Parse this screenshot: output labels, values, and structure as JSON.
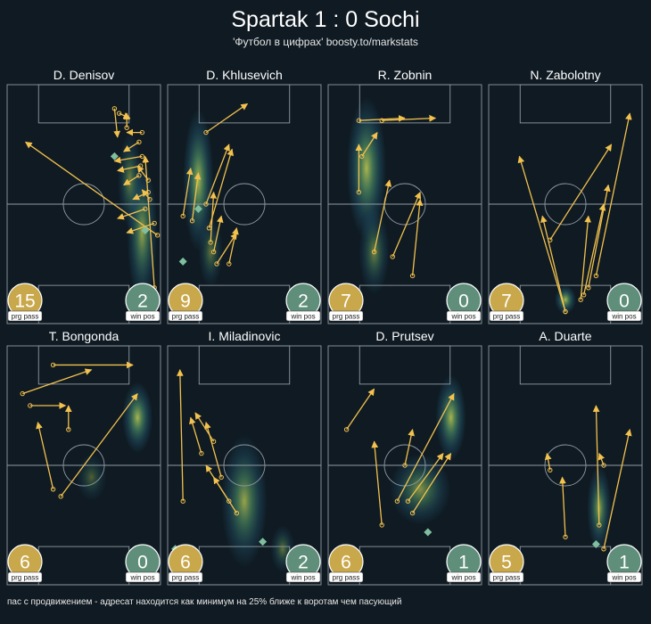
{
  "header": {
    "title": "Spartak 1 : 0 Sochi",
    "subtitle": "'Футбол в цифрах' boosty.to/markstats"
  },
  "footnote": "пас с продвижением - адресат находится как минимум на 25% ближе к воротам чем пасующий",
  "colors": {
    "background": "#0f1a22",
    "pitch_lines": "#8f9aa3",
    "pass_arrow": "#f2c14e",
    "prg_badge": "#c9a84c",
    "win_badge": "#5f8f7a",
    "win_marker": "#7fbf9f",
    "heat_low": "#2a6e8a",
    "heat_high": "#d9e55a"
  },
  "chart_data": [
    {
      "type": "pass_map",
      "player": "D. Denisov",
      "prg_pass": 15,
      "win_pos": 2,
      "prg_label": "prg pass",
      "win_label": "win pos",
      "heat": [
        [
          0.88,
          0.62,
          0.1,
          0.3,
          0.8
        ],
        [
          0.8,
          0.4,
          0.08,
          0.2,
          0.6
        ]
      ],
      "passes": [
        [
          0.7,
          0.1,
          0.72,
          0.22
        ],
        [
          0.73,
          0.12,
          0.8,
          0.14
        ],
        [
          0.78,
          0.18,
          0.78,
          0.12
        ],
        [
          0.88,
          0.2,
          0.78,
          0.2
        ],
        [
          0.86,
          0.24,
          0.76,
          0.28
        ],
        [
          0.88,
          0.3,
          0.7,
          0.32
        ],
        [
          0.87,
          0.34,
          0.72,
          0.36
        ],
        [
          0.86,
          0.38,
          0.76,
          0.42
        ],
        [
          0.92,
          0.45,
          0.82,
          0.48
        ],
        [
          0.9,
          0.52,
          0.72,
          0.56
        ],
        [
          0.96,
          0.58,
          0.78,
          0.62
        ],
        [
          0.98,
          0.63,
          0.12,
          0.24
        ],
        [
          0.96,
          0.85,
          0.9,
          0.3
        ],
        [
          0.92,
          0.4,
          0.85,
          0.34
        ],
        [
          0.93,
          0.48,
          0.88,
          0.44
        ]
      ],
      "wins": [
        [
          0.7,
          0.3
        ],
        [
          0.9,
          0.61
        ]
      ]
    },
    {
      "type": "pass_map",
      "player": "D. Khlusevich",
      "prg_pass": 9,
      "win_pos": 2,
      "prg_label": "prg pass",
      "win_label": "win pos",
      "heat": [
        [
          0.2,
          0.4,
          0.1,
          0.3,
          0.9
        ],
        [
          0.28,
          0.7,
          0.08,
          0.15,
          0.5
        ]
      ],
      "passes": [
        [
          0.25,
          0.2,
          0.52,
          0.08
        ],
        [
          0.1,
          0.55,
          0.15,
          0.35
        ],
        [
          0.16,
          0.57,
          0.2,
          0.37
        ],
        [
          0.25,
          0.5,
          0.4,
          0.25
        ],
        [
          0.27,
          0.6,
          0.42,
          0.27
        ],
        [
          0.28,
          0.66,
          0.3,
          0.45
        ],
        [
          0.3,
          0.7,
          0.35,
          0.55
        ],
        [
          0.32,
          0.75,
          0.45,
          0.62
        ],
        [
          0.4,
          0.75,
          0.45,
          0.6
        ]
      ],
      "wins": [
        [
          0.1,
          0.74
        ],
        [
          0.2,
          0.52
        ]
      ]
    },
    {
      "type": "pass_map",
      "player": "R. Zobnin",
      "prg_pass": 7,
      "win_pos": 0,
      "prg_label": "prg pass",
      "win_label": "win pos",
      "heat": [
        [
          0.25,
          0.35,
          0.13,
          0.3,
          0.9
        ],
        [
          0.3,
          0.7,
          0.1,
          0.18,
          0.6
        ]
      ],
      "passes": [
        [
          0.2,
          0.15,
          0.5,
          0.14
        ],
        [
          0.35,
          0.15,
          0.7,
          0.14
        ],
        [
          0.22,
          0.3,
          0.32,
          0.2
        ],
        [
          0.2,
          0.45,
          0.2,
          0.25
        ],
        [
          0.3,
          0.7,
          0.4,
          0.4
        ],
        [
          0.42,
          0.72,
          0.6,
          0.45
        ],
        [
          0.55,
          0.8,
          0.6,
          0.48
        ]
      ],
      "wins": []
    },
    {
      "type": "pass_map",
      "player": "N. Zabolotny",
      "prg_pass": 7,
      "win_pos": 0,
      "prg_label": "prg pass",
      "win_label": "win pos",
      "heat": [
        [
          0.5,
          0.9,
          0.07,
          0.06,
          0.9
        ]
      ],
      "passes": [
        [
          0.5,
          0.95,
          0.35,
          0.55
        ],
        [
          0.5,
          0.95,
          0.2,
          0.3
        ],
        [
          0.6,
          0.9,
          0.65,
          0.55
        ],
        [
          0.62,
          0.88,
          0.75,
          0.5
        ],
        [
          0.65,
          0.85,
          0.78,
          0.42
        ],
        [
          0.7,
          0.8,
          0.92,
          0.12
        ],
        [
          0.4,
          0.65,
          0.8,
          0.25
        ]
      ],
      "wins": []
    },
    {
      "type": "pass_map",
      "player": "T. Bongonda",
      "prg_pass": 6,
      "win_pos": 0,
      "prg_label": "prg pass",
      "win_label": "win pos",
      "heat": [
        [
          0.85,
          0.3,
          0.1,
          0.15,
          0.9
        ],
        [
          0.55,
          0.55,
          0.1,
          0.1,
          0.4
        ]
      ],
      "passes": [
        [
          0.3,
          0.08,
          0.82,
          0.08
        ],
        [
          0.1,
          0.2,
          0.55,
          0.1
        ],
        [
          0.15,
          0.25,
          0.38,
          0.25
        ],
        [
          0.4,
          0.35,
          0.4,
          0.25
        ],
        [
          0.3,
          0.6,
          0.2,
          0.32
        ],
        [
          0.35,
          0.63,
          0.85,
          0.2
        ]
      ],
      "wins": []
    },
    {
      "type": "pass_map",
      "player": "I. Miladinovic",
      "prg_pass": 6,
      "win_pos": 2,
      "prg_label": "prg pass",
      "win_label": "win pos",
      "heat": [
        [
          0.5,
          0.65,
          0.15,
          0.28,
          0.8
        ],
        [
          0.75,
          0.85,
          0.08,
          0.1,
          0.5
        ]
      ],
      "passes": [
        [
          0.1,
          0.65,
          0.08,
          0.1
        ],
        [
          0.22,
          0.45,
          0.15,
          0.3
        ],
        [
          0.3,
          0.4,
          0.18,
          0.28
        ],
        [
          0.35,
          0.55,
          0.25,
          0.32
        ],
        [
          0.4,
          0.65,
          0.25,
          0.5
        ],
        [
          0.45,
          0.7,
          0.3,
          0.55
        ]
      ],
      "wins": [
        [
          0.05,
          0.85
        ],
        [
          0.62,
          0.82
        ]
      ]
    },
    {
      "type": "pass_map",
      "player": "D. Prutsev",
      "prg_pass": 6,
      "win_pos": 1,
      "prg_label": "prg pass",
      "win_label": "win pos",
      "heat": [
        [
          0.8,
          0.3,
          0.1,
          0.18,
          0.9
        ],
        [
          0.6,
          0.6,
          0.2,
          0.15,
          0.7
        ]
      ],
      "passes": [
        [
          0.12,
          0.35,
          0.3,
          0.18
        ],
        [
          0.35,
          0.75,
          0.3,
          0.4
        ],
        [
          0.45,
          0.65,
          0.82,
          0.2
        ],
        [
          0.5,
          0.5,
          0.55,
          0.35
        ],
        [
          0.52,
          0.65,
          0.75,
          0.45
        ],
        [
          0.55,
          0.7,
          0.8,
          0.45
        ]
      ],
      "wins": [
        [
          0.65,
          0.78
        ]
      ]
    },
    {
      "type": "pass_map",
      "player": "A. Duarte",
      "prg_pass": 5,
      "win_pos": 1,
      "prg_label": "prg pass",
      "win_label": "win pos",
      "heat": [
        [
          0.72,
          0.68,
          0.08,
          0.18,
          0.8
        ]
      ],
      "passes": [
        [
          0.5,
          0.8,
          0.48,
          0.55
        ],
        [
          0.4,
          0.52,
          0.38,
          0.45
        ],
        [
          0.72,
          0.75,
          0.7,
          0.25
        ],
        [
          0.75,
          0.85,
          0.92,
          0.35
        ],
        [
          0.75,
          0.5,
          0.72,
          0.45
        ]
      ],
      "wins": [
        [
          0.7,
          0.83
        ]
      ]
    }
  ]
}
